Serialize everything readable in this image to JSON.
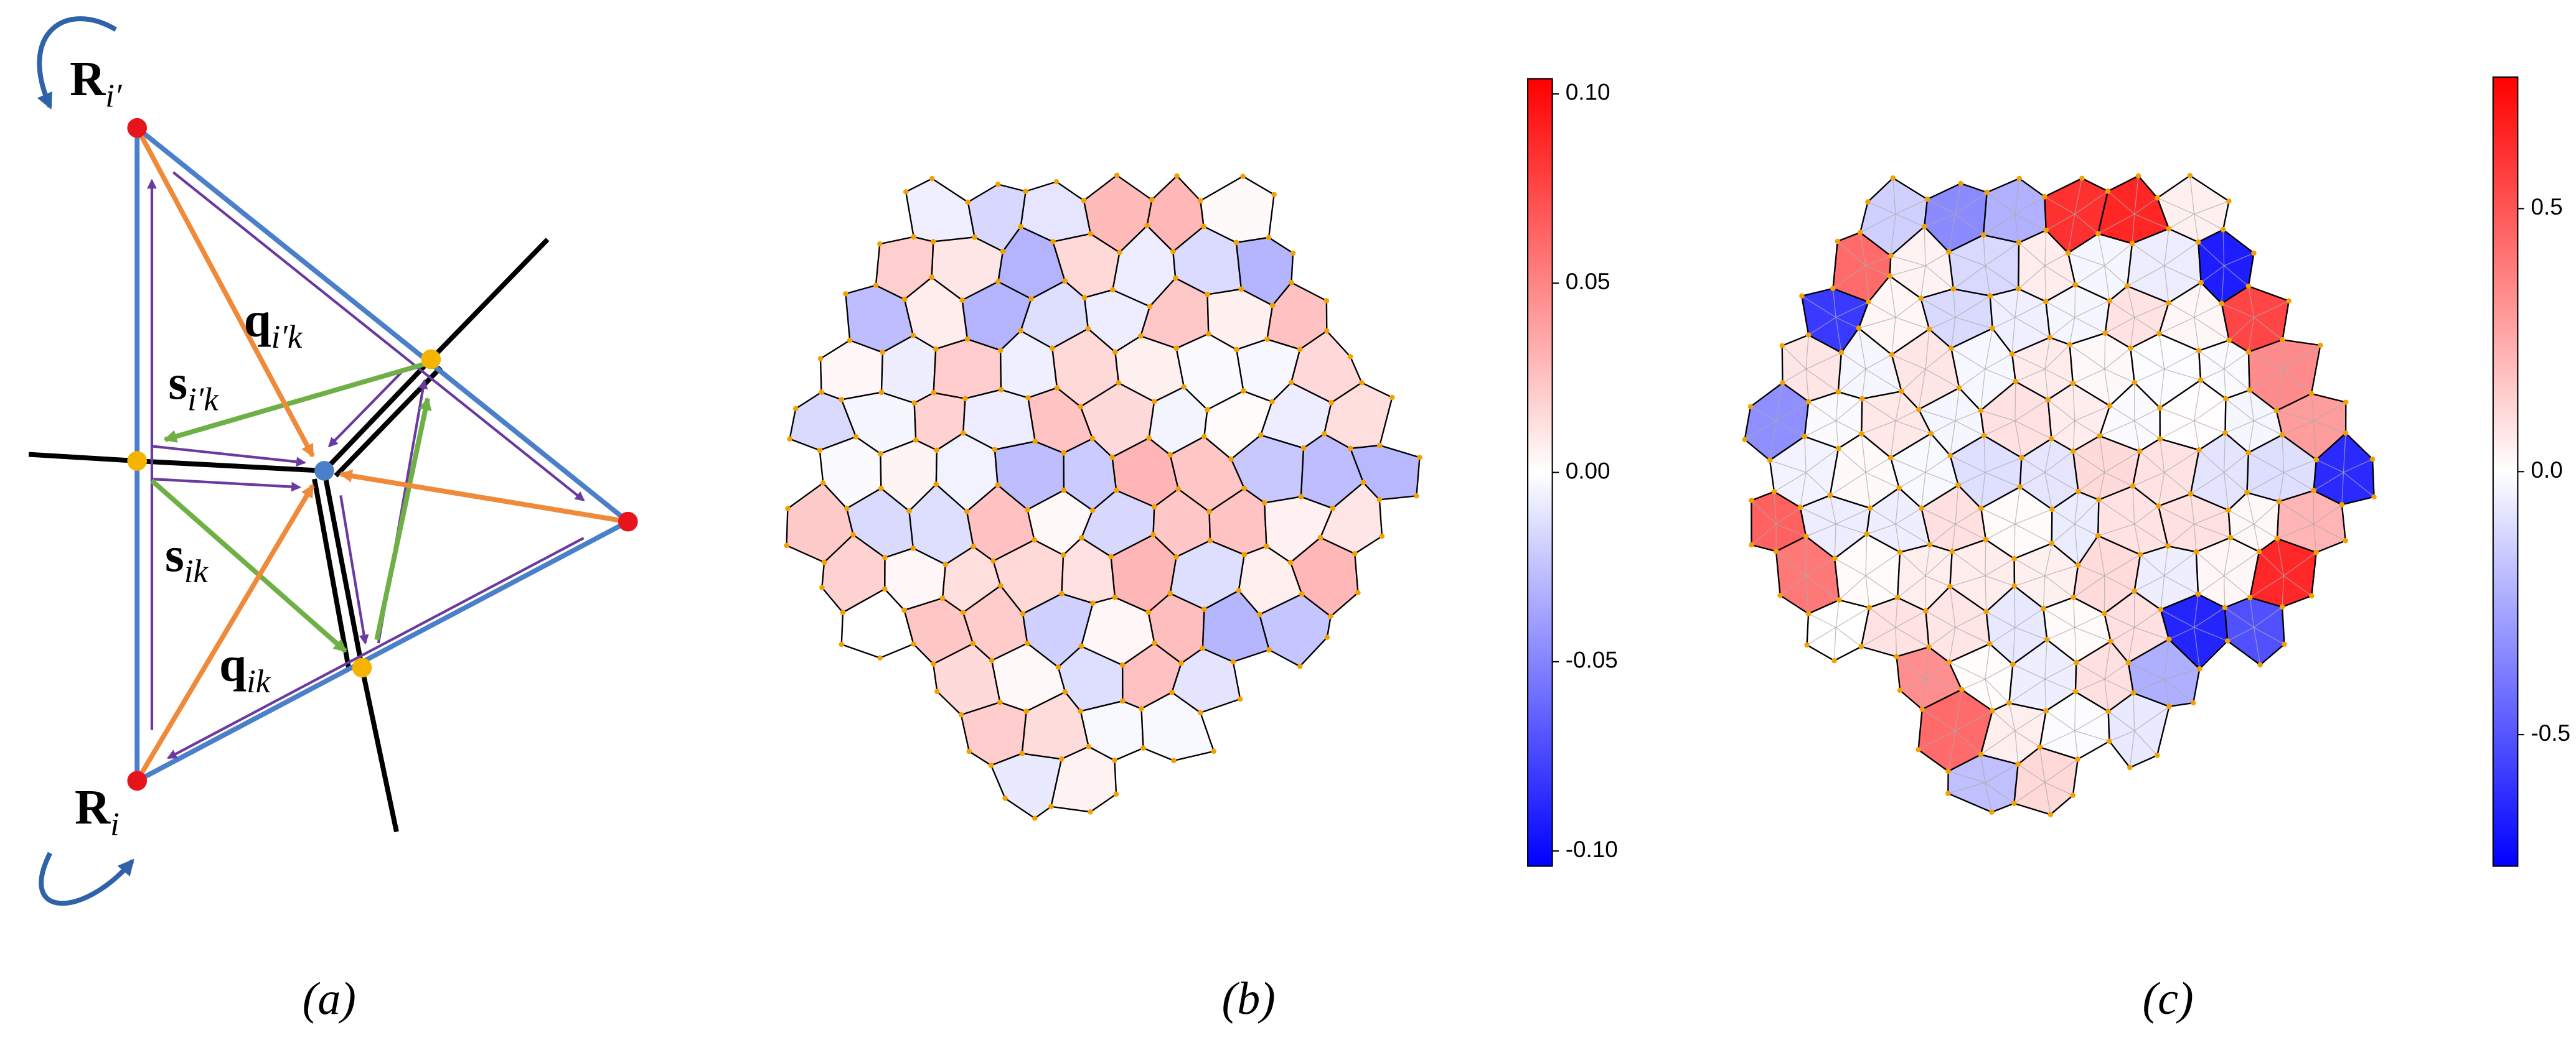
{
  "panels": [
    {
      "caption": "(a)",
      "labels": [
        {
          "main": "R",
          "sub": "i′"
        },
        {
          "main": "q",
          "sub": "i′k"
        },
        {
          "main": "s",
          "sub": "i′k"
        },
        {
          "main": "s",
          "sub": "ik"
        },
        {
          "main": "q",
          "sub": "ik"
        },
        {
          "main": "R",
          "sub": "i"
        }
      ]
    },
    {
      "caption": "(b)",
      "colorbar": {
        "ylim": [
          -0.104,
          0.104
        ],
        "yticks": [
          {
            "value": 0.1,
            "label": "0.10"
          },
          {
            "value": 0.05,
            "label": "0.05"
          },
          {
            "value": 0,
            "label": "0.00"
          },
          {
            "value": -0.05,
            "label": "-0.05"
          },
          {
            "value": -0.1,
            "label": "-0.10"
          }
        ]
      }
    },
    {
      "caption": "(c)",
      "colorbar": {
        "ylim": [
          -0.75,
          0.75
        ],
        "yticks": [
          0.5,
          {
            "value": 0,
            "label": "0.0"
          },
          -0.5
        ]
      }
    }
  ]
}
